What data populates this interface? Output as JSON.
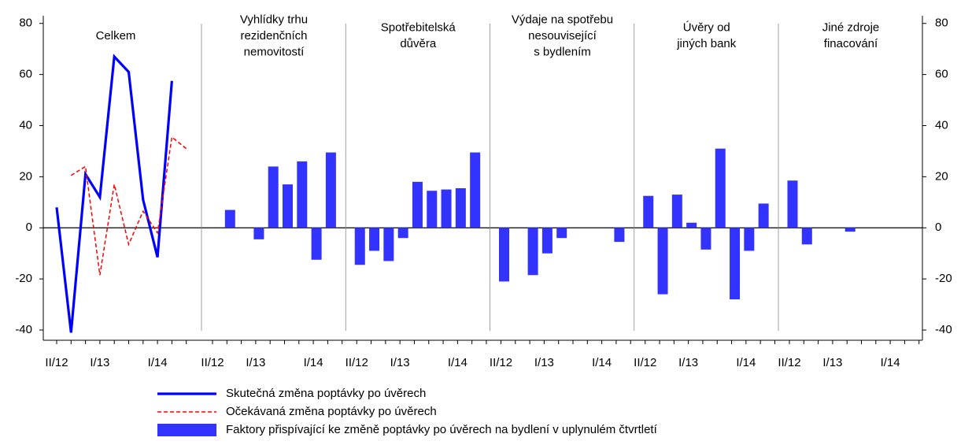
{
  "chart_data": {
    "type": "panels",
    "ylim": [
      -44,
      83
    ],
    "yticks": [
      -40,
      -20,
      0,
      20,
      40,
      60,
      80
    ],
    "categories": [
      "II/12",
      null,
      null,
      "I/13",
      null,
      null,
      null,
      "I/14",
      null,
      null
    ],
    "panels": [
      {
        "title": [
          "Celkem"
        ]
      },
      {
        "title": [
          "Vyhlídky trhu",
          "rezidenčních",
          "nemovitostí"
        ]
      },
      {
        "title": [
          "Spotřebitelská",
          "důvěra"
        ]
      },
      {
        "title": [
          "Výdaje na spotřebu",
          "nesouvisející",
          "s bydlením"
        ]
      },
      {
        "title": [
          "Úvěry od",
          "jiných bank"
        ]
      },
      {
        "title": [
          "Jiné zdroje",
          "finacování"
        ]
      }
    ],
    "series": [
      {
        "name": "Skutečná změna poptávky po úvěrech",
        "type": "line",
        "color": "#0000ff",
        "dashed": false,
        "panel": 0,
        "values": [
          8,
          -41,
          21,
          12,
          67,
          61,
          11,
          -11.5,
          57.5,
          null
        ]
      },
      {
        "name": "Očekávaná změna poptávky po úvěrech",
        "type": "line",
        "color": "#ff0000",
        "dashed": true,
        "panel": 0,
        "values": [
          null,
          20.5,
          24,
          -18.5,
          17,
          -6.5,
          6.5,
          -2,
          35.5,
          31
        ]
      },
      {
        "name": "Faktory přispívající ke změně poptávky po úvěrech na bydlení v uplynulém čtvrtletí",
        "type": "bar",
        "color": "#3333ff",
        "values": [
          [
            null,
            null,
            null,
            null,
            null,
            null,
            null,
            null,
            null,
            null
          ],
          [
            null,
            7,
            null,
            -4.5,
            24,
            17,
            26,
            -12.5,
            29.5,
            null
          ],
          [
            -14.5,
            -9,
            -13,
            -4,
            18,
            14.5,
            15,
            15.5,
            29.5,
            null
          ],
          [
            -21,
            null,
            -18.5,
            -10,
            -4,
            null,
            null,
            null,
            -5.5,
            null
          ],
          [
            12.5,
            -26,
            13,
            2,
            -8.5,
            31,
            -28,
            -9,
            9.5,
            null
          ],
          [
            18.5,
            -6.5,
            null,
            null,
            -1.5,
            null,
            null,
            null,
            null,
            null
          ]
        ]
      }
    ]
  }
}
